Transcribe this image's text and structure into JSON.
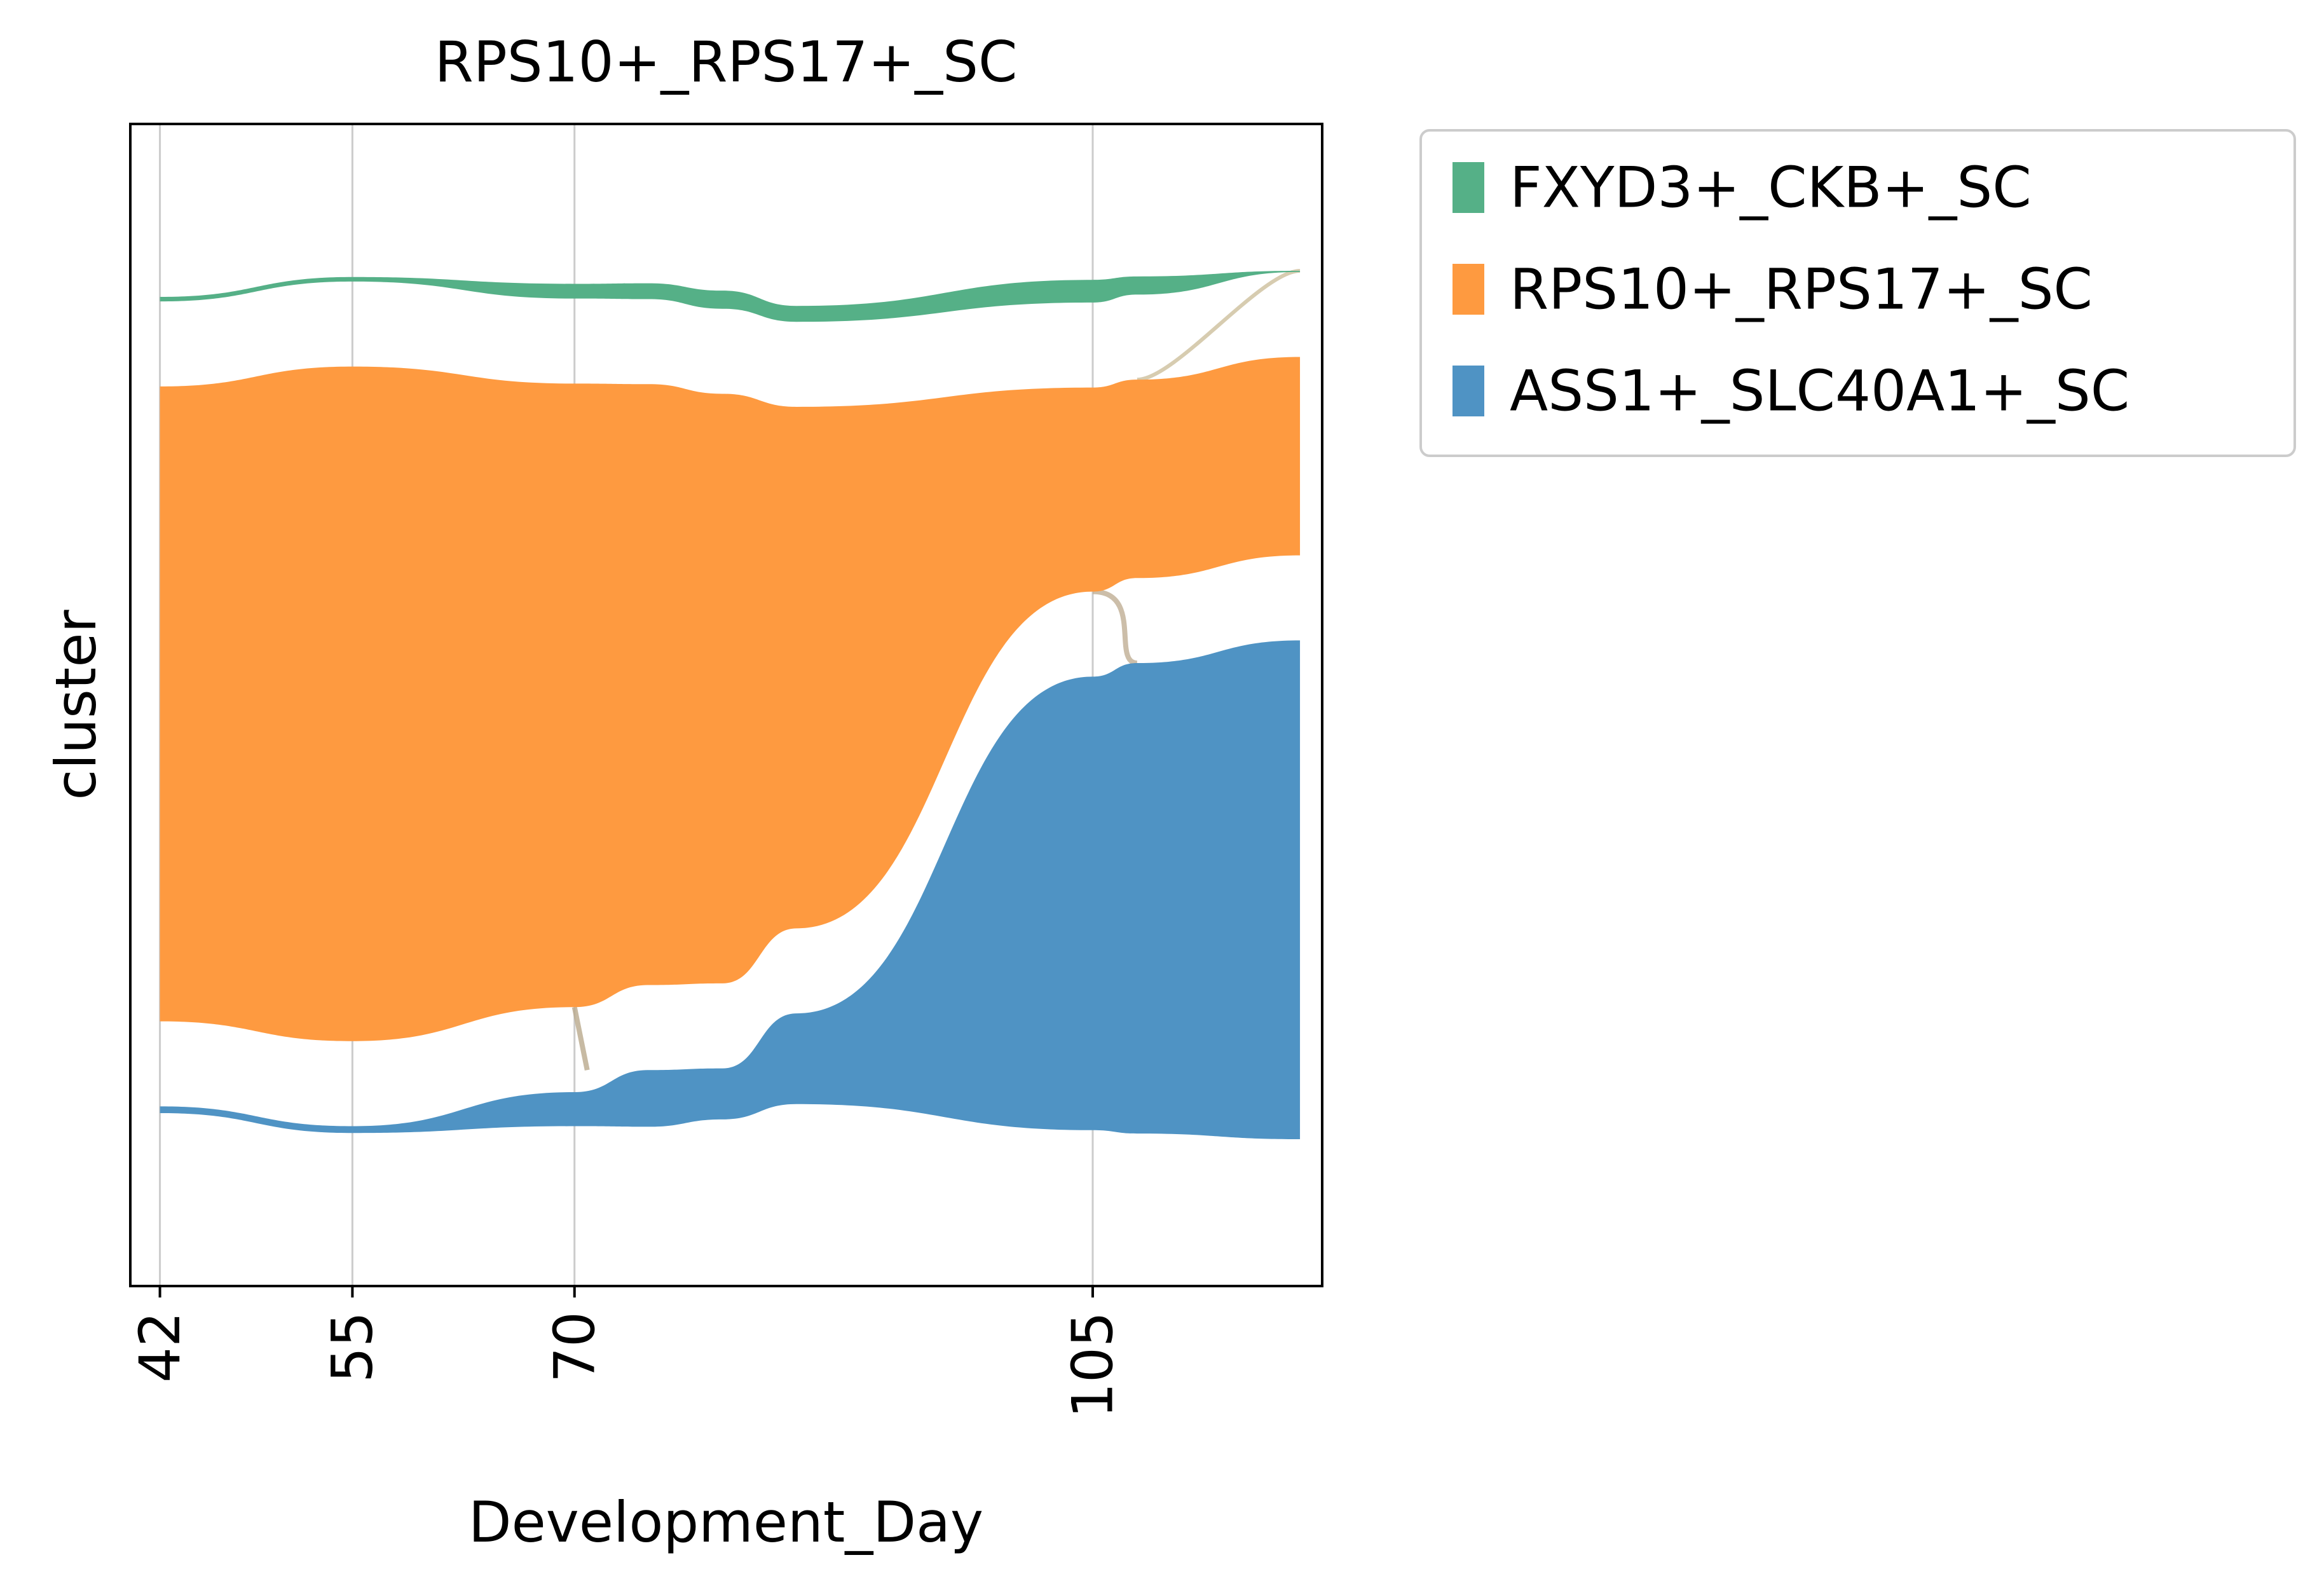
{
  "chart_data": {
    "type": "area",
    "title": "RPS10+_RPS17+_SC",
    "xlabel": "Development_Day",
    "ylabel": "cluster",
    "x_ticks": [
      42,
      55,
      70,
      105
    ],
    "xlim": [
      40,
      120.5
    ],
    "x": [
      42,
      55,
      70,
      75,
      80,
      85,
      105,
      108,
      119
    ],
    "grid": "vertical",
    "legend_position": "outside-right",
    "series": [
      {
        "name": "FXYD3+_CKB+_SC",
        "color": "#55b087",
        "values": [
          0.4,
          0.4,
          1.3,
          1.4,
          1.6,
          1.4,
          2.0,
          1.6,
          0.1
        ]
      },
      {
        "name": "RPS10+_RPS17+_SC",
        "color": "#fe9a40",
        "values": [
          56.0,
          59.5,
          55.0,
          53.0,
          52.0,
          46.0,
          18.0,
          17.5,
          17.5
        ]
      },
      {
        "name": "ASS1+_SLC40A1+_SC",
        "color": "#4f93c4",
        "values": [
          0.6,
          0.6,
          3.0,
          5.0,
          4.5,
          8.0,
          40.0,
          41.5,
          44.0
        ]
      }
    ]
  }
}
